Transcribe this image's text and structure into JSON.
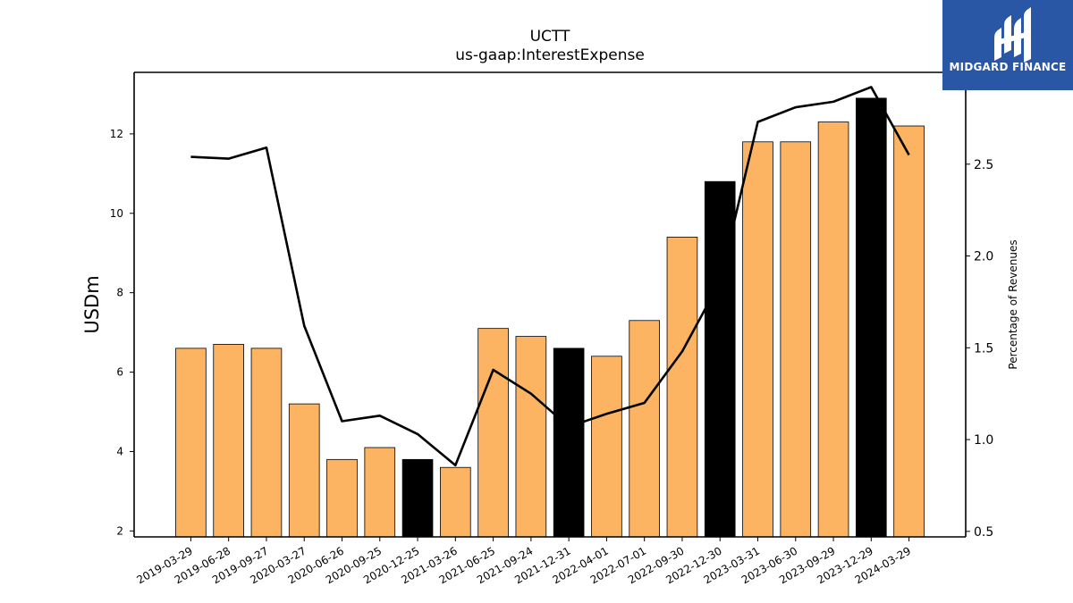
{
  "header": {
    "title": "UCTT",
    "subtitle": "us-gaap:InterestExpense"
  },
  "logo": {
    "text": "MIDGARD FINANCE",
    "icon": "midgard-logo-icon",
    "background": "#2a56a6"
  },
  "chart_data": {
    "type": "bar",
    "title": "UCTT",
    "subtitle": "us-gaap:InterestExpense",
    "ylabel": "USDm",
    "y2label": "Percentage of Revenues",
    "ylim": [
      1.85,
      13.55
    ],
    "y2lim": [
      0.47,
      3.0
    ],
    "yticks": [
      2,
      4,
      6,
      8,
      10,
      12
    ],
    "y2ticks": [
      0.5,
      1.0,
      1.5,
      2.0,
      2.5
    ],
    "grid": false,
    "categories": [
      "2019-03-29",
      "2019-06-28",
      "2019-09-27",
      "2020-03-27",
      "2020-06-26",
      "2020-09-25",
      "2020-12-25",
      "2021-03-26",
      "2021-06-25",
      "2021-09-24",
      "2021-12-31",
      "2022-04-01",
      "2022-07-01",
      "2022-09-30",
      "2022-12-30",
      "2023-03-31",
      "2023-06-30",
      "2023-09-29",
      "2023-12-29",
      "2024-03-29"
    ],
    "series": [
      {
        "name": "",
        "type": "bar",
        "axis": "left",
        "values": [
          6.6,
          6.7,
          6.6,
          5.2,
          3.8,
          4.1,
          3.8,
          3.6,
          7.1,
          6.9,
          6.6,
          6.4,
          7.3,
          9.4,
          10.8,
          11.8,
          11.8,
          12.3,
          12.9,
          12.2
        ],
        "colors": [
          "#fdb462",
          "#fdb462",
          "#fdb462",
          "#fdb462",
          "#fdb462",
          "#fdb462",
          "#000000",
          "#fdb462",
          "#fdb462",
          "#fdb462",
          "#000000",
          "#fdb462",
          "#fdb462",
          "#fdb462",
          "#000000",
          "#fdb462",
          "#fdb462",
          "#fdb462",
          "#000000",
          "#fdb462"
        ]
      },
      {
        "name": "",
        "type": "line",
        "axis": "right",
        "color": "#000000",
        "values": [
          2.54,
          2.53,
          2.59,
          1.62,
          1.1,
          1.13,
          1.03,
          0.86,
          1.38,
          1.25,
          1.07,
          1.14,
          1.2,
          1.48,
          1.86,
          2.73,
          2.81,
          2.84,
          2.92,
          2.55
        ]
      }
    ]
  }
}
